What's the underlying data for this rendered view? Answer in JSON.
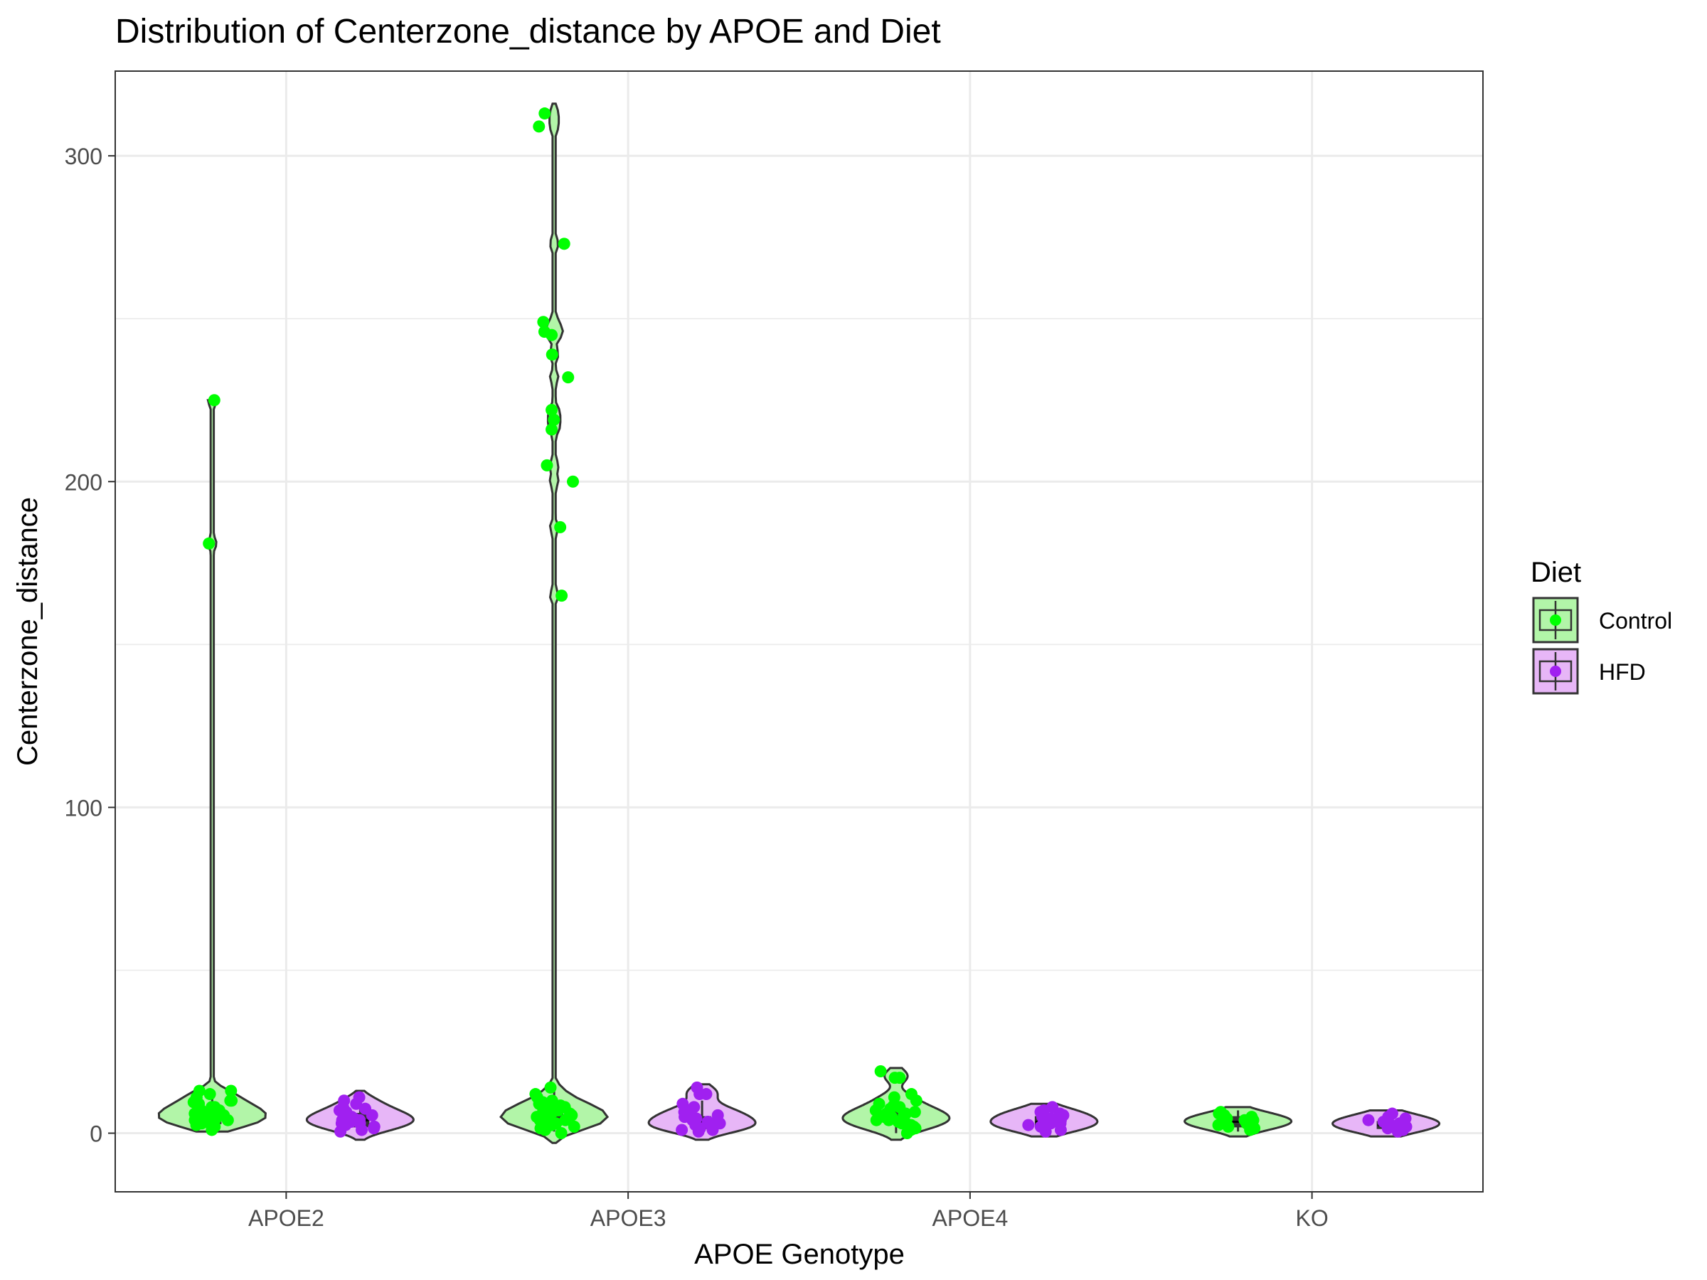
{
  "colors": {
    "control_point": "#00ff00",
    "hfd_point": "#a020f0",
    "control_fill": "#b2f5a8",
    "hfd_fill": "#e7b6f7",
    "box_fill": "#333333",
    "outline": "#333333",
    "grid": "#ebebeb",
    "axis_text": "#4d4d4d",
    "title_text": "#000000"
  },
  "chart_data": {
    "type": "violin",
    "title": "Distribution of Centerzone_distance by APOE and Diet",
    "xlabel": "APOE Genotype",
    "ylabel": "Centerzone_distance",
    "ylim": [
      -18,
      326
    ],
    "yticks": [
      0,
      100,
      200,
      300
    ],
    "y_minor_ticks": [
      50,
      150,
      250
    ],
    "grid": true,
    "categories": [
      "APOE2",
      "APOE3",
      "APOE4",
      "KO"
    ],
    "legend": {
      "title": "Diet",
      "position": "right",
      "entries": [
        {
          "name": "Control",
          "color": "#00ff00",
          "fill": "#b2f5a8"
        },
        {
          "name": "HFD",
          "color": "#a020f0",
          "fill": "#e7b6f7"
        }
      ]
    },
    "series": [
      {
        "name": "Control",
        "groups": [
          {
            "category": "APOE2",
            "violin_range": [
              0.5,
              225
            ],
            "box": {
              "q1": 3,
              "median": 5,
              "q3": 7,
              "whisker_low": 0.5,
              "whisker_high": 12
            },
            "outliers": [
              181,
              225
            ],
            "points": [
              1,
              2,
              2.5,
              3,
              3,
              3.5,
              4,
              4,
              4.5,
              5,
              5,
              5.5,
              6,
              6,
              6.5,
              7,
              7,
              7.5,
              8,
              8,
              9,
              9.5,
              10,
              10,
              11,
              12,
              13,
              13
            ]
          },
          {
            "category": "APOE3",
            "violin_range": [
              -3,
              316
            ],
            "box": {
              "q1": 4,
              "median": 6,
              "q3": 8,
              "whisker_low": 0.5,
              "whisker_high": 13
            },
            "outliers": [
              165,
              186,
              200,
              205,
              216,
              219,
              222,
              232,
              239,
              245,
              246,
              249,
              273,
              309,
              313
            ],
            "points": [
              0,
              1,
              1.5,
              2,
              2.5,
              3,
              3,
              3.5,
              4,
              4,
              4.5,
              5,
              5,
              5.5,
              6,
              6,
              6.5,
              7,
              7,
              7.5,
              8,
              8.5,
              9,
              9.5,
              10,
              11,
              12,
              14
            ]
          },
          {
            "category": "APOE4",
            "violin_range": [
              -2,
              20
            ],
            "box": {
              "q1": 3.5,
              "median": 5,
              "q3": 7,
              "whisker_low": 0,
              "whisker_high": 12
            },
            "outliers": [
              17,
              19
            ],
            "points": [
              0,
              1,
              1.5,
              2,
              2.5,
              3,
              3,
              3.5,
              4,
              4,
              4.5,
              5,
              5,
              5.5,
              6,
              6,
              6.5,
              7,
              7.5,
              8,
              8.5,
              9,
              10,
              11,
              12,
              17
            ]
          },
          {
            "category": "KO",
            "violin_range": [
              -1,
              8
            ],
            "box": {
              "q1": 2,
              "median": 3.5,
              "q3": 5,
              "whisker_low": 0.5,
              "whisker_high": 7
            },
            "outliers": [],
            "points": [
              1,
              1.5,
              2,
              2.5,
              3,
              3,
              3.5,
              4,
              4,
              4.5,
              5,
              5.5,
              6,
              6.5
            ]
          }
        ]
      },
      {
        "name": "HFD",
        "groups": [
          {
            "category": "APOE2",
            "violin_range": [
              -2,
              13
            ],
            "box": {
              "q1": 2,
              "median": 4,
              "q3": 6,
              "whisker_low": 0,
              "whisker_high": 11
            },
            "outliers": [],
            "points": [
              0.5,
              1,
              1.5,
              2,
              2.5,
              3,
              3,
              3.5,
              4,
              4,
              4.5,
              5,
              5,
              5.5,
              6,
              6.5,
              7,
              7.5,
              8,
              9,
              10,
              11
            ]
          },
          {
            "category": "APOE3",
            "violin_range": [
              -2,
              15
            ],
            "box": {
              "q1": 1.5,
              "median": 3.5,
              "q3": 5,
              "whisker_low": 0,
              "whisker_high": 10
            },
            "outliers": [
              12,
              14
            ],
            "points": [
              0.5,
              1,
              1,
              1.5,
              2,
              2.5,
              3,
              3,
              3.5,
              4,
              4.5,
              5,
              5.5,
              6,
              6.5,
              7,
              8,
              9,
              12
            ]
          },
          {
            "category": "APOE4",
            "violin_range": [
              -1,
              9
            ],
            "box": {
              "q1": 2,
              "median": 3.5,
              "q3": 5,
              "whisker_low": 0.5,
              "whisker_high": 8
            },
            "outliers": [],
            "points": [
              0.5,
              1,
              1.5,
              2,
              2.5,
              3,
              3,
              3.5,
              4,
              4.5,
              5,
              5.5,
              6,
              6.5,
              7,
              8
            ]
          },
          {
            "category": "KO",
            "violin_range": [
              -1,
              7
            ],
            "box": {
              "q1": 1.5,
              "median": 2.5,
              "q3": 3.5,
              "whisker_low": 0.5,
              "whisker_high": 6
            },
            "outliers": [],
            "points": [
              0.5,
              1,
              1.5,
              2,
              2.5,
              3,
              3.5,
              4,
              4.5,
              5,
              6
            ]
          }
        ]
      }
    ]
  }
}
